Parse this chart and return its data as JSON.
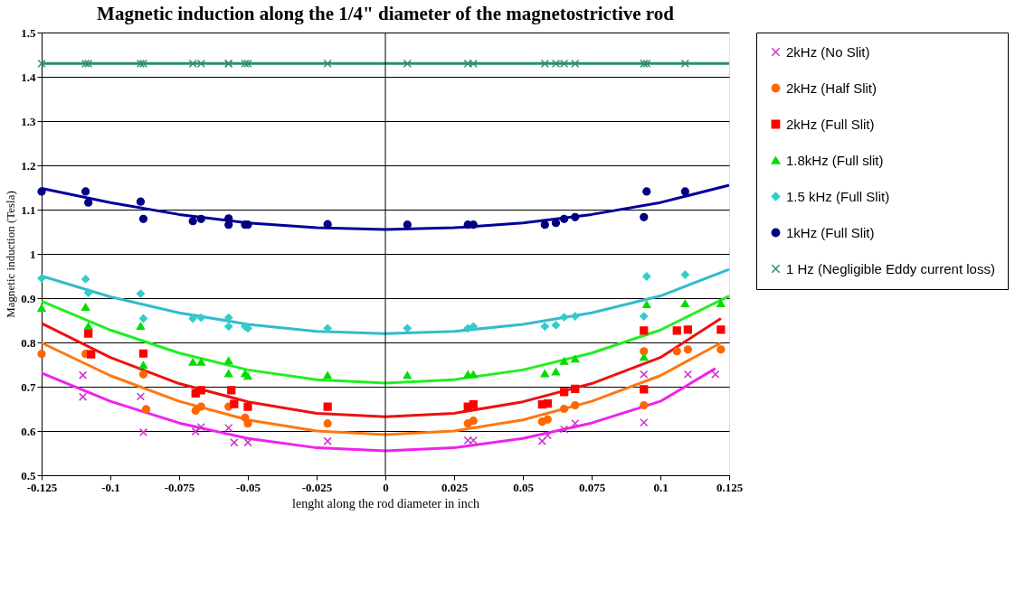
{
  "chart_data": {
    "type": "scatter",
    "title": "Magnetic induction along the 1/4\" diameter of the magnetostrictive rod",
    "xlabel": "lenght along the rod diameter in inch",
    "ylabel": "Magnetic induction (Tesla)",
    "xlim": [
      -0.125,
      0.125
    ],
    "xticks": [
      -0.125,
      -0.1,
      -0.075,
      -0.05,
      -0.025,
      0,
      0.025,
      0.05,
      0.075,
      0.1,
      0.125
    ],
    "ylim": [
      0.5,
      1.5
    ],
    "yticks": [
      0.5,
      0.6,
      0.7,
      0.8,
      0.9,
      1,
      1.1,
      1.2,
      1.3,
      1.4,
      1.5
    ],
    "grid": "y",
    "legend": "right",
    "ref_lines": [
      {
        "axis": "x",
        "value": 0,
        "color": "#000000"
      }
    ],
    "series": [
      {
        "name": "2kHz (No Slit)",
        "type": "scatter",
        "marker": "cross",
        "color": "#cc33cc",
        "x": [
          -0.11,
          -0.11,
          -0.089,
          -0.088,
          -0.069,
          -0.067,
          -0.057,
          -0.055,
          -0.05,
          -0.021,
          0.03,
          0.032,
          0.057,
          0.059,
          0.065,
          0.069,
          0.094,
          0.094,
          0.11,
          0.12
        ],
        "values": [
          0.726,
          0.677,
          0.678,
          0.597,
          0.599,
          0.609,
          0.607,
          0.574,
          0.574,
          0.577,
          0.579,
          0.579,
          0.577,
          0.59,
          0.604,
          0.617,
          0.619,
          0.728,
          0.728,
          0.728
        ]
      },
      {
        "name": "2kHz (Half Slit)",
        "type": "scatter",
        "marker": "circle",
        "color": "#ff6600",
        "x": [
          -0.125,
          -0.109,
          -0.088,
          -0.087,
          -0.069,
          -0.067,
          -0.057,
          -0.051,
          -0.05,
          -0.021,
          0.03,
          0.032,
          0.057,
          0.059,
          0.065,
          0.069,
          0.094,
          0.094,
          0.106,
          0.11,
          0.122
        ],
        "values": [
          0.774,
          0.774,
          0.728,
          0.649,
          0.646,
          0.655,
          0.655,
          0.63,
          0.617,
          0.617,
          0.617,
          0.623,
          0.621,
          0.626,
          0.65,
          0.658,
          0.658,
          0.78,
          0.78,
          0.784,
          0.784
        ]
      },
      {
        "name": "2kHz (Full Slit)",
        "type": "scatter",
        "marker": "square",
        "color": "#ff0000",
        "x": [
          -0.108,
          -0.107,
          -0.088,
          -0.069,
          -0.067,
          -0.056,
          -0.055,
          -0.05,
          -0.021,
          0.03,
          0.032,
          0.057,
          0.059,
          0.065,
          0.069,
          0.094,
          0.094,
          0.106,
          0.11,
          0.122
        ],
        "values": [
          0.82,
          0.773,
          0.775,
          0.685,
          0.692,
          0.692,
          0.661,
          0.655,
          0.655,
          0.655,
          0.66,
          0.66,
          0.662,
          0.688,
          0.695,
          0.694,
          0.827,
          0.827,
          0.829,
          0.829
        ]
      },
      {
        "name": "1.8kHz (Full slit)",
        "type": "scatter",
        "marker": "triangle",
        "color": "#00dd00",
        "x": [
          -0.125,
          -0.109,
          -0.108,
          -0.089,
          -0.088,
          -0.07,
          -0.067,
          -0.057,
          -0.057,
          -0.051,
          -0.05,
          -0.021,
          0.008,
          0.03,
          0.032,
          0.058,
          0.062,
          0.065,
          0.069,
          0.094,
          0.095,
          0.109,
          0.122
        ],
        "values": [
          0.878,
          0.88,
          0.837,
          0.837,
          0.749,
          0.756,
          0.756,
          0.759,
          0.73,
          0.73,
          0.724,
          0.726,
          0.726,
          0.728,
          0.728,
          0.73,
          0.734,
          0.758,
          0.763,
          0.767,
          0.886,
          0.888,
          0.888
        ]
      },
      {
        "name": "1.5 kHz (Full Slit)",
        "type": "scatter",
        "marker": "diamond",
        "color": "#33cccc",
        "x": [
          -0.125,
          -0.109,
          -0.108,
          -0.089,
          -0.088,
          -0.07,
          -0.067,
          -0.057,
          -0.057,
          -0.051,
          -0.05,
          -0.021,
          0.008,
          0.03,
          0.032,
          0.058,
          0.062,
          0.065,
          0.069,
          0.094,
          0.095,
          0.109
        ],
        "values": [
          0.945,
          0.943,
          0.912,
          0.91,
          0.854,
          0.854,
          0.856,
          0.856,
          0.836,
          0.836,
          0.832,
          0.832,
          0.832,
          0.832,
          0.836,
          0.836,
          0.839,
          0.857,
          0.859,
          0.859,
          0.949,
          0.953
        ]
      },
      {
        "name": "1kHz (Full Slit)",
        "type": "scatter",
        "marker": "circle",
        "color": "#000080",
        "x": [
          -0.125,
          -0.109,
          -0.108,
          -0.089,
          -0.088,
          -0.07,
          -0.067,
          -0.057,
          -0.057,
          -0.051,
          -0.05,
          -0.021,
          0.008,
          0.03,
          0.032,
          0.058,
          0.062,
          0.065,
          0.069,
          0.094,
          0.095,
          0.109
        ],
        "values": [
          1.141,
          1.141,
          1.116,
          1.118,
          1.079,
          1.074,
          1.079,
          1.08,
          1.066,
          1.066,
          1.066,
          1.067,
          1.066,
          1.066,
          1.066,
          1.066,
          1.07,
          1.079,
          1.083,
          1.083,
          1.141,
          1.141
        ]
      },
      {
        "name": "1 Hz (Negligible Eddy current loss)",
        "type": "scatter",
        "marker": "cross",
        "color": "#2e8b70",
        "x": [
          -0.125,
          -0.109,
          -0.108,
          -0.089,
          -0.088,
          -0.07,
          -0.067,
          -0.057,
          -0.057,
          -0.051,
          -0.05,
          -0.021,
          0.008,
          0.03,
          0.032,
          0.058,
          0.062,
          0.065,
          0.069,
          0.094,
          0.095,
          0.109
        ],
        "values": [
          1.43,
          1.43,
          1.43,
          1.43,
          1.43,
          1.43,
          1.43,
          1.43,
          1.43,
          1.43,
          1.43,
          1.43,
          1.43,
          1.43,
          1.43,
          1.43,
          1.43,
          1.43,
          1.43,
          1.43,
          1.43,
          1.43
        ]
      },
      {
        "type": "line",
        "color": "#ee22ee",
        "x": [
          -0.125,
          -0.1,
          -0.075,
          -0.05,
          -0.025,
          0,
          0.025,
          0.05,
          0.075,
          0.1,
          0.12
        ],
        "values": [
          0.731,
          0.667,
          0.618,
          0.583,
          0.562,
          0.555,
          0.562,
          0.583,
          0.618,
          0.667,
          0.741
        ]
      },
      {
        "type": "line",
        "color": "#ff7711",
        "x": [
          -0.125,
          -0.1,
          -0.075,
          -0.05,
          -0.025,
          0,
          0.025,
          0.05,
          0.075,
          0.1,
          0.122
        ],
        "values": [
          0.799,
          0.725,
          0.667,
          0.625,
          0.6,
          0.592,
          0.6,
          0.625,
          0.667,
          0.725,
          0.799
        ]
      },
      {
        "type": "line",
        "color": "#ee1111",
        "x": [
          -0.125,
          -0.1,
          -0.075,
          -0.05,
          -0.025,
          0,
          0.025,
          0.05,
          0.075,
          0.1,
          0.122
        ],
        "values": [
          0.843,
          0.766,
          0.707,
          0.666,
          0.64,
          0.632,
          0.64,
          0.666,
          0.707,
          0.766,
          0.854
        ]
      },
      {
        "type": "line",
        "color": "#22ee22",
        "x": [
          -0.125,
          -0.1,
          -0.075,
          -0.05,
          -0.025,
          0,
          0.025,
          0.05,
          0.075,
          0.1,
          0.125
        ],
        "values": [
          0.893,
          0.828,
          0.776,
          0.738,
          0.716,
          0.708,
          0.716,
          0.738,
          0.776,
          0.828,
          0.905
        ]
      },
      {
        "type": "line",
        "color": "#33bbcc",
        "x": [
          -0.125,
          -0.1,
          -0.075,
          -0.05,
          -0.025,
          0,
          0.025,
          0.05,
          0.075,
          0.1,
          0.125
        ],
        "values": [
          0.95,
          0.903,
          0.867,
          0.841,
          0.825,
          0.82,
          0.825,
          0.841,
          0.867,
          0.905,
          0.965
        ]
      },
      {
        "type": "line",
        "color": "#000099",
        "x": [
          -0.125,
          -0.1,
          -0.075,
          -0.05,
          -0.025,
          0,
          0.025,
          0.05,
          0.075,
          0.1,
          0.125
        ],
        "values": [
          1.148,
          1.116,
          1.089,
          1.07,
          1.059,
          1.055,
          1.059,
          1.07,
          1.089,
          1.116,
          1.155
        ]
      },
      {
        "type": "line",
        "color": "#2e8b70",
        "x": [
          -0.125,
          0.125
        ],
        "values": [
          1.43,
          1.43
        ]
      }
    ]
  }
}
